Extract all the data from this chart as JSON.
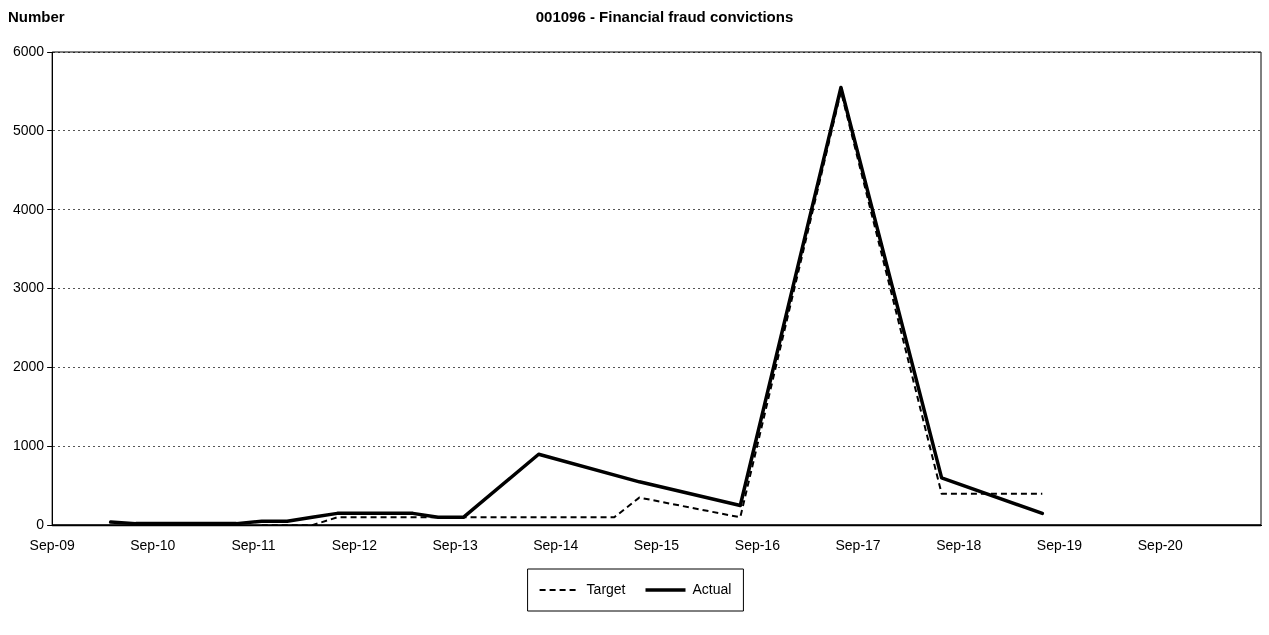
{
  "chart_data": {
    "type": "line",
    "title": "001096 - Financial fraud convictions",
    "ylabel": "Number",
    "xlim": [
      "2009-09",
      "2021-09"
    ],
    "xticks": [
      {
        "value": "2009-09",
        "label": "Sep-09"
      },
      {
        "value": "2010-09",
        "label": "Sep-10"
      },
      {
        "value": "2011-09",
        "label": "Sep-11"
      },
      {
        "value": "2012-09",
        "label": "Sep-12"
      },
      {
        "value": "2013-09",
        "label": "Sep-13"
      },
      {
        "value": "2014-09",
        "label": "Sep-14"
      },
      {
        "value": "2015-09",
        "label": "Sep-15"
      },
      {
        "value": "2016-09",
        "label": "Sep-16"
      },
      {
        "value": "2017-09",
        "label": "Sep-17"
      },
      {
        "value": "2018-09",
        "label": "Sep-18"
      },
      {
        "value": "2019-09",
        "label": "Sep-19"
      },
      {
        "value": "2020-09",
        "label": "Sep-20"
      }
    ],
    "ylim": [
      0,
      6000
    ],
    "yticks": [
      0,
      1000,
      2000,
      3000,
      4000,
      5000,
      6000
    ],
    "grid": "y",
    "legend": "bottom",
    "marker": "none",
    "series": [
      {
        "name": "Target",
        "color": "#000000",
        "line_style": "dashed",
        "x": [
          "2011-10",
          "2012-01",
          "2012-04",
          "2012-07",
          "2012-10",
          "2013-01",
          "2013-04",
          "2013-07",
          "2013-10",
          "2014-07",
          "2015-04",
          "2015-07",
          "2016-07",
          "2017-07",
          "2018-07",
          "2019-07"
        ],
        "values": [
          0,
          0,
          0,
          100,
          100,
          100,
          100,
          100,
          100,
          100,
          100,
          350,
          100,
          5500,
          400,
          400
        ]
      },
      {
        "name": "Actual",
        "color": "#000000",
        "line_style": "solid",
        "x": [
          "2010-04",
          "2010-07",
          "2010-10",
          "2011-01",
          "2011-04",
          "2011-07",
          "2011-10",
          "2012-01",
          "2012-04",
          "2012-07",
          "2012-10",
          "2013-01",
          "2013-04",
          "2013-07",
          "2013-10",
          "2014-07",
          "2015-07",
          "2016-07",
          "2017-07",
          "2018-07",
          "2019-07"
        ],
        "values": [
          40,
          20,
          20,
          20,
          20,
          20,
          50,
          50,
          100,
          150,
          150,
          150,
          150,
          100,
          100,
          900,
          550,
          250,
          5550,
          600,
          150
        ]
      }
    ]
  }
}
